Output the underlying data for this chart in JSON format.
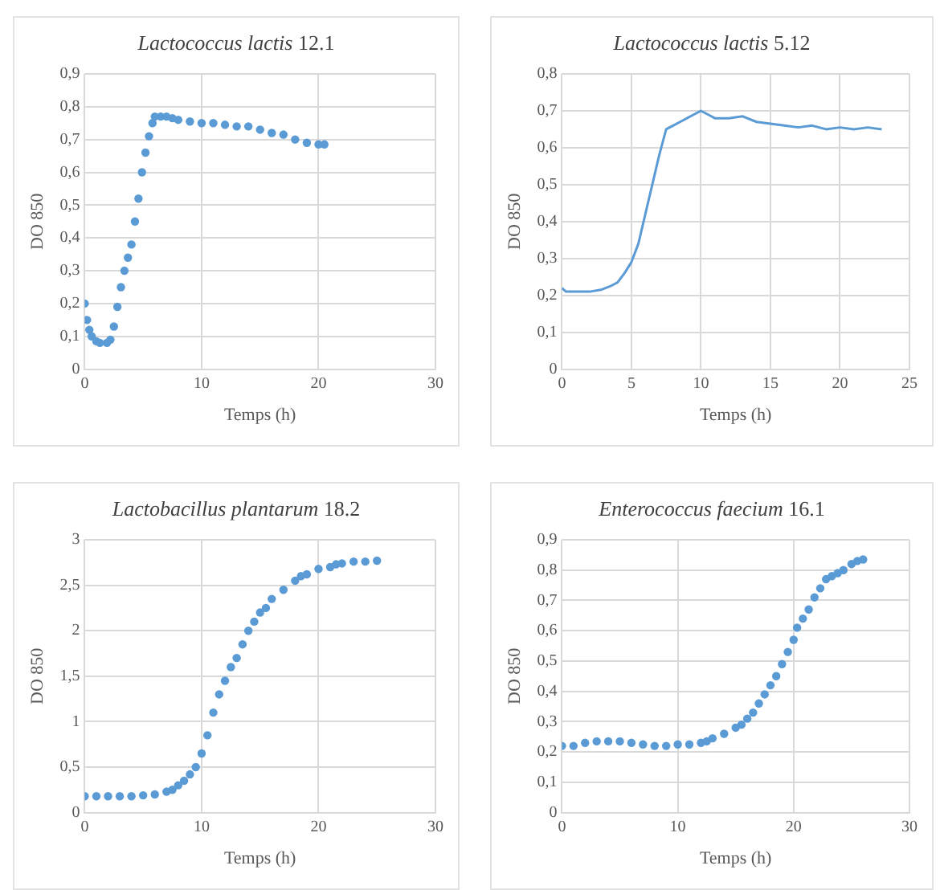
{
  "chart_data": [
    {
      "type": "scatter",
      "title": "Lactococcus lactis 12.1",
      "xlabel": "Temps (h)",
      "ylabel": "DO 850",
      "marker": "circle",
      "grid": true,
      "legend": false,
      "xlim": [
        0,
        30
      ],
      "xticks": [
        0,
        10,
        20,
        30
      ],
      "ylim": [
        0,
        0.9
      ],
      "yticks": [
        0,
        {
          "value": 0.1,
          "label": "0,1"
        },
        {
          "value": 0.2,
          "label": "0,2"
        },
        {
          "value": 0.3,
          "label": "0,3"
        },
        {
          "value": 0.4,
          "label": "0,4"
        },
        {
          "value": 0.5,
          "label": "0,5"
        },
        {
          "value": 0.6,
          "label": "0,6"
        },
        {
          "value": 0.7,
          "label": "0,7"
        },
        {
          "value": 0.8,
          "label": "0,8"
        },
        {
          "value": 0.9,
          "label": "0,9"
        }
      ],
      "series": [
        {
          "color": "#5b9bd5",
          "x": [
            0,
            0.2,
            0.4,
            0.6,
            1,
            1.3,
            1.9,
            2.2,
            2.5,
            2.8,
            3.1,
            3.4,
            3.7,
            4,
            4.3,
            4.6,
            4.9,
            5.2,
            5.5,
            5.8,
            6,
            6.5,
            7,
            7.5,
            8,
            9,
            10,
            11,
            12,
            13,
            14,
            15,
            16,
            17,
            18,
            19,
            20,
            20.5
          ],
          "values": [
            0.2,
            0.15,
            0.12,
            0.1,
            0.085,
            0.08,
            0.08,
            0.09,
            0.13,
            0.19,
            0.25,
            0.3,
            0.34,
            0.38,
            0.45,
            0.52,
            0.6,
            0.66,
            0.71,
            0.75,
            0.77,
            0.77,
            0.77,
            0.765,
            0.76,
            0.755,
            0.75,
            0.75,
            0.745,
            0.74,
            0.74,
            0.73,
            0.72,
            0.715,
            0.7,
            0.69,
            0.685,
            0.685
          ]
        }
      ]
    },
    {
      "type": "line",
      "title": "Lactococcus lactis 5.12",
      "xlabel": "Temps (h)",
      "ylabel": "DO 850",
      "marker": "none",
      "grid": true,
      "legend": false,
      "xlim": [
        0,
        25
      ],
      "xticks": [
        0,
        5,
        10,
        15,
        20,
        25
      ],
      "ylim": [
        0,
        0.8
      ],
      "yticks": [
        0,
        {
          "value": 0.1,
          "label": "0,1"
        },
        {
          "value": 0.2,
          "label": "0,2"
        },
        {
          "value": 0.3,
          "label": "0,3"
        },
        {
          "value": 0.4,
          "label": "0,4"
        },
        {
          "value": 0.5,
          "label": "0,5"
        },
        {
          "value": 0.6,
          "label": "0,6"
        },
        {
          "value": 0.7,
          "label": "0,7"
        },
        {
          "value": 0.8,
          "label": "0,8"
        }
      ],
      "series": [
        {
          "color": "#5b9bd5",
          "x": [
            0,
            0.3,
            1,
            2,
            2.8,
            3.5,
            4,
            4.5,
            5,
            5.5,
            6,
            6.5,
            7,
            7.5,
            8,
            8.5,
            9,
            9.5,
            10,
            10.5,
            11,
            12,
            13,
            14,
            15,
            16,
            17,
            18,
            19,
            20,
            21,
            22,
            23
          ],
          "values": [
            0.22,
            0.21,
            0.21,
            0.21,
            0.215,
            0.225,
            0.235,
            0.26,
            0.29,
            0.34,
            0.42,
            0.5,
            0.58,
            0.65,
            0.66,
            0.67,
            0.68,
            0.69,
            0.7,
            0.69,
            0.68,
            0.68,
            0.685,
            0.67,
            0.665,
            0.66,
            0.655,
            0.66,
            0.65,
            0.655,
            0.65,
            0.655,
            0.65
          ]
        }
      ]
    },
    {
      "type": "scatter",
      "title": "Lactobacillus plantarum 18.2",
      "xlabel": "Temps (h)",
      "ylabel": "DO 850",
      "marker": "circle",
      "grid": true,
      "legend": false,
      "xlim": [
        0,
        30
      ],
      "xticks": [
        0,
        10,
        20,
        30
      ],
      "ylim": [
        0,
        3
      ],
      "yticks": [
        0,
        {
          "value": 0.5,
          "label": "0,5"
        },
        1,
        {
          "value": 1.5,
          "label": "1,5"
        },
        2,
        {
          "value": 2.5,
          "label": "2,5"
        },
        3
      ],
      "series": [
        {
          "color": "#5b9bd5",
          "x": [
            0,
            1,
            2,
            3,
            4,
            5,
            6,
            7,
            7.5,
            8,
            8.5,
            9,
            9.5,
            10,
            10.5,
            11,
            11.5,
            12,
            12.5,
            13,
            13.5,
            14,
            14.5,
            15,
            15.5,
            16,
            17,
            18,
            18.5,
            19,
            20,
            21,
            21.5,
            22,
            23,
            24,
            25
          ],
          "values": [
            0.18,
            0.18,
            0.18,
            0.18,
            0.18,
            0.19,
            0.2,
            0.23,
            0.25,
            0.3,
            0.35,
            0.42,
            0.5,
            0.65,
            0.85,
            1.1,
            1.3,
            1.45,
            1.6,
            1.7,
            1.85,
            2.0,
            2.1,
            2.2,
            2.25,
            2.35,
            2.45,
            2.55,
            2.6,
            2.62,
            2.68,
            2.7,
            2.73,
            2.74,
            2.76,
            2.76,
            2.77
          ]
        }
      ]
    },
    {
      "type": "scatter",
      "title": "Enterococcus faecium 16.1",
      "xlabel": "Temps (h)",
      "ylabel": "DO 850",
      "marker": "circle",
      "grid": true,
      "legend": false,
      "xlim": [
        0,
        30
      ],
      "xticks": [
        0,
        10,
        20,
        30
      ],
      "ylim": [
        0,
        0.9
      ],
      "yticks": [
        0,
        {
          "value": 0.1,
          "label": "0,1"
        },
        {
          "value": 0.2,
          "label": "0,2"
        },
        {
          "value": 0.3,
          "label": "0,3"
        },
        {
          "value": 0.4,
          "label": "0,4"
        },
        {
          "value": 0.5,
          "label": "0,5"
        },
        {
          "value": 0.6,
          "label": "0,6"
        },
        {
          "value": 0.7,
          "label": "0,7"
        },
        {
          "value": 0.8,
          "label": "0,8"
        },
        {
          "value": 0.9,
          "label": "0,9"
        }
      ],
      "series": [
        {
          "color": "#5b9bd5",
          "x": [
            0,
            1,
            2,
            3,
            4,
            5,
            6,
            7,
            8,
            9,
            10,
            11,
            12,
            12.5,
            13,
            14,
            15,
            15.5,
            16,
            16.5,
            17,
            17.5,
            18,
            18.5,
            19,
            19.5,
            20,
            20.3,
            20.8,
            21.3,
            21.8,
            22.3,
            22.8,
            23.3,
            23.8,
            24.3,
            25,
            25.5,
            26
          ],
          "values": [
            0.22,
            0.22,
            0.23,
            0.235,
            0.235,
            0.235,
            0.23,
            0.225,
            0.22,
            0.22,
            0.225,
            0.225,
            0.23,
            0.235,
            0.245,
            0.26,
            0.28,
            0.29,
            0.31,
            0.33,
            0.36,
            0.39,
            0.42,
            0.45,
            0.49,
            0.53,
            0.57,
            0.61,
            0.64,
            0.67,
            0.71,
            0.74,
            0.77,
            0.78,
            0.79,
            0.8,
            0.82,
            0.83,
            0.835
          ]
        }
      ]
    }
  ]
}
